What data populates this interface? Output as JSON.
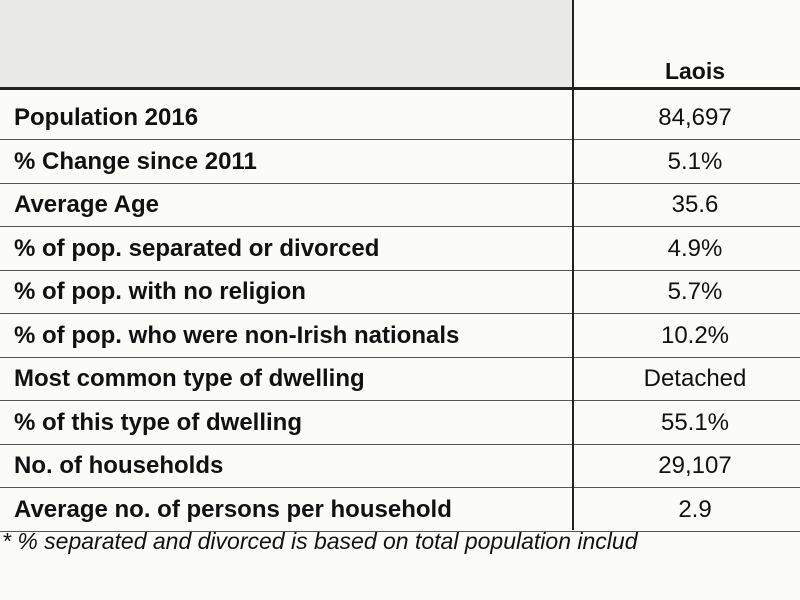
{
  "table": {
    "header": "Laois",
    "rows": [
      [
        "Population 2016",
        "84,697"
      ],
      [
        "% Change since 2011",
        "5.1%"
      ],
      [
        "Average Age",
        "35.6"
      ],
      [
        "% of pop. separated or divorced",
        "4.9%"
      ],
      [
        "% of pop. with no religion",
        "5.7%"
      ],
      [
        "% of pop. who were non-Irish nationals",
        "10.2%"
      ],
      [
        "Most common type of dwelling",
        "Detached"
      ],
      [
        "% of this type of dwelling",
        "55.1%"
      ],
      [
        "No. of households",
        "29,107"
      ],
      [
        "Average no. of persons per household",
        "2.9"
      ]
    ]
  },
  "footnote": "* % separated and divorced is based on total population includ"
}
